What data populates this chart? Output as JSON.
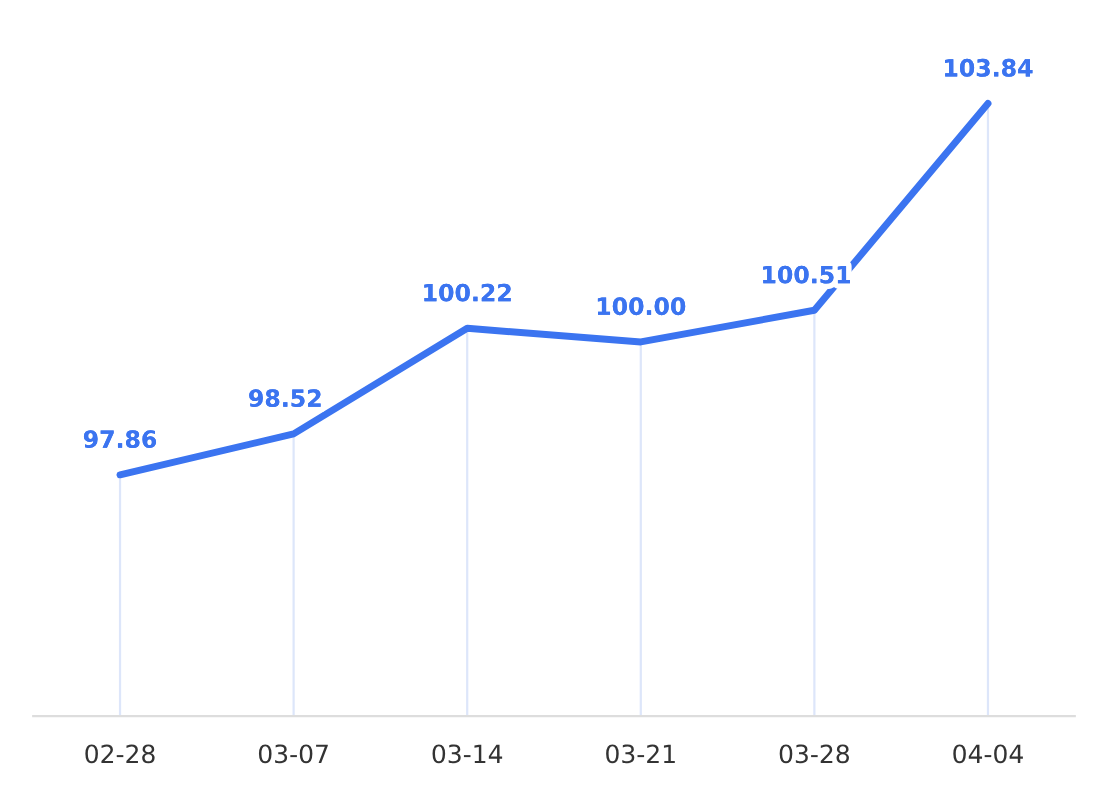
{
  "chart_data": {
    "type": "line",
    "categories": [
      "02-28",
      "03-07",
      "03-14",
      "03-21",
      "03-28",
      "04-04"
    ],
    "series": [
      {
        "color": "#3b74f0",
        "values": [
          97.86,
          98.52,
          100.22,
          100.0,
          100.51,
          103.84
        ],
        "value_labels": [
          "97.86",
          "98.52",
          "100.22",
          "100.00",
          "100.51",
          "103.84"
        ]
      }
    ],
    "grid": "x",
    "legend": false,
    "marker": "none",
    "line_style": "solid",
    "tick_labels": "x"
  }
}
